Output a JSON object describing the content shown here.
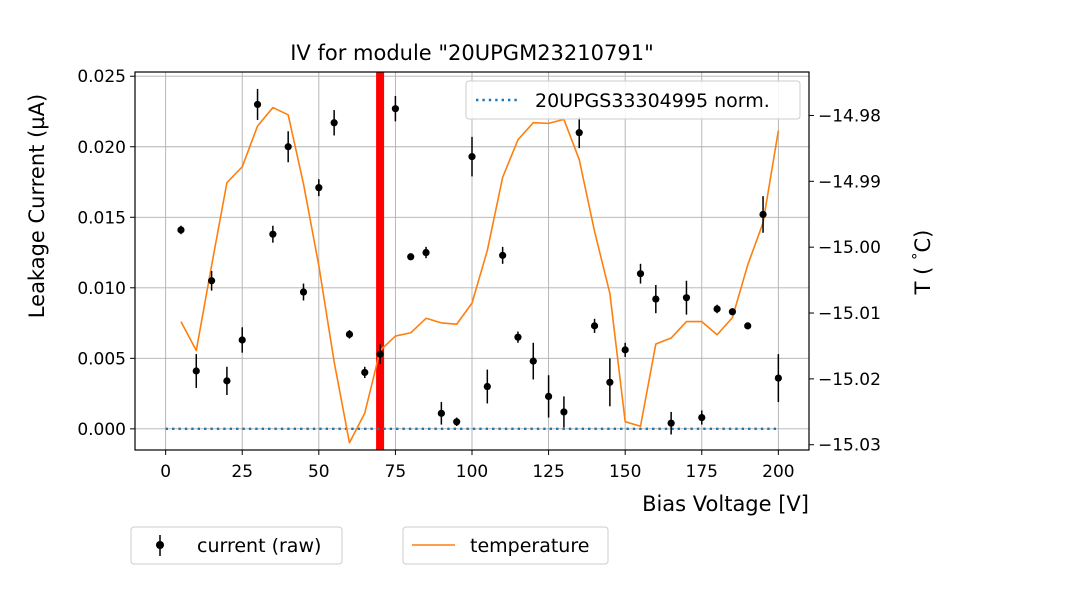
{
  "chart_data": {
    "type": "scatter",
    "title": "IV for module \"20UPGM23210791\"",
    "xlabel": "Bias Voltage [V]",
    "ylabel": "Leakage Current (µA)",
    "y2label": "T ($^\\circ$C)",
    "xlim": [
      -10,
      210
    ],
    "ylim": [
      -0.0015,
      0.0253
    ],
    "y2lim": [
      -15.0308,
      -14.9734
    ],
    "xticks": [
      0,
      25,
      50,
      75,
      100,
      125,
      150,
      175,
      200
    ],
    "xtick_labels": [
      "0",
      "25",
      "50",
      "75",
      "100",
      "125",
      "150",
      "175",
      "200"
    ],
    "yticks": [
      0.0,
      0.005,
      0.01,
      0.015,
      0.02,
      0.025
    ],
    "ytick_labels": [
      "0.000",
      "0.005",
      "0.010",
      "0.015",
      "0.020",
      "0.025"
    ],
    "y2ticks": [
      -15.03,
      -15.02,
      -15.01,
      -15.0,
      -14.99,
      -14.98
    ],
    "y2tick_labels": [
      "−15.03",
      "−15.02",
      "−15.01",
      "−15.00",
      "−14.99",
      "−14.98"
    ],
    "grid": true,
    "vline": {
      "x": 70,
      "color": "#ff0000"
    },
    "series": [
      {
        "name": "current (raw)",
        "kind": "errorbar",
        "color": "#000000",
        "x": [
          5,
          10,
          15,
          20,
          25,
          30,
          35,
          40,
          45,
          50,
          55,
          60,
          65,
          70,
          75,
          80,
          85,
          90,
          95,
          100,
          105,
          110,
          115,
          120,
          125,
          130,
          135,
          140,
          145,
          150,
          155,
          160,
          165,
          170,
          175,
          180,
          185,
          190,
          195,
          200
        ],
        "y": [
          0.0141,
          0.0041,
          0.0105,
          0.0034,
          0.0063,
          0.023,
          0.0138,
          0.02,
          0.0097,
          0.0171,
          0.0217,
          0.0067,
          0.004,
          0.0053,
          0.0227,
          0.0122,
          0.0125,
          0.0011,
          0.0005,
          0.0193,
          0.003,
          0.0123,
          0.0065,
          0.0048,
          0.0023,
          0.0012,
          0.021,
          0.0073,
          0.0033,
          0.0056,
          0.011,
          0.0092,
          0.0004,
          0.0093,
          0.0008,
          0.0085,
          0.0083,
          0.0073,
          0.0152,
          0.0036
        ],
        "yerr": [
          0.0003,
          0.0012,
          0.0007,
          0.001,
          0.0009,
          0.0011,
          0.0006,
          0.0011,
          0.0006,
          0.0006,
          0.0009,
          0.0003,
          0.0004,
          0.0007,
          0.0009,
          0.0002,
          0.0004,
          0.0008,
          0.0003,
          0.0014,
          0.0012,
          0.0006,
          0.0004,
          0.0013,
          0.0015,
          0.0011,
          0.0011,
          0.0005,
          0.0017,
          0.0005,
          0.0007,
          0.001,
          0.0008,
          0.0012,
          0.0005,
          0.0003,
          0.0002,
          0.0002,
          0.0013,
          0.0017
        ]
      },
      {
        "name": "temperature",
        "kind": "line",
        "axis": "right",
        "color": "#ff7f0e",
        "x": [
          5,
          10,
          15,
          20,
          25,
          30,
          35,
          40,
          45,
          50,
          55,
          60,
          65,
          70,
          75,
          80,
          85,
          90,
          95,
          100,
          105,
          110,
          115,
          120,
          125,
          130,
          135,
          140,
          145,
          150,
          155,
          160,
          165,
          170,
          175,
          180,
          185,
          190,
          195,
          200
        ],
        "y": [
          -15.0113,
          -15.0157,
          -15.0028,
          -14.9902,
          -14.9878,
          -14.9816,
          -14.9788,
          -14.9799,
          -14.9904,
          -15.0028,
          -15.0174,
          -15.0297,
          -15.0252,
          -15.0157,
          -15.0135,
          -15.013,
          -15.0108,
          -15.0115,
          -15.0117,
          -15.0085,
          -15.0005,
          -14.9894,
          -14.9837,
          -14.9811,
          -14.9812,
          -14.9806,
          -14.9867,
          -14.9976,
          -15.007,
          -15.0265,
          -15.0272,
          -15.0147,
          -15.0138,
          -15.0113,
          -15.0113,
          -15.0133,
          -15.0107,
          -15.0027,
          -14.9963,
          -14.9823
        ]
      },
      {
        "name": "20UPGS33304995 norm.",
        "kind": "dotted-line",
        "color": "#1f77b4",
        "x": [
          0,
          200
        ],
        "y": [
          0.0,
          0.0
        ]
      }
    ],
    "legends": {
      "upper": [
        "20UPGS33304995 norm."
      ],
      "lower": [
        "current (raw)",
        "temperature"
      ]
    }
  }
}
